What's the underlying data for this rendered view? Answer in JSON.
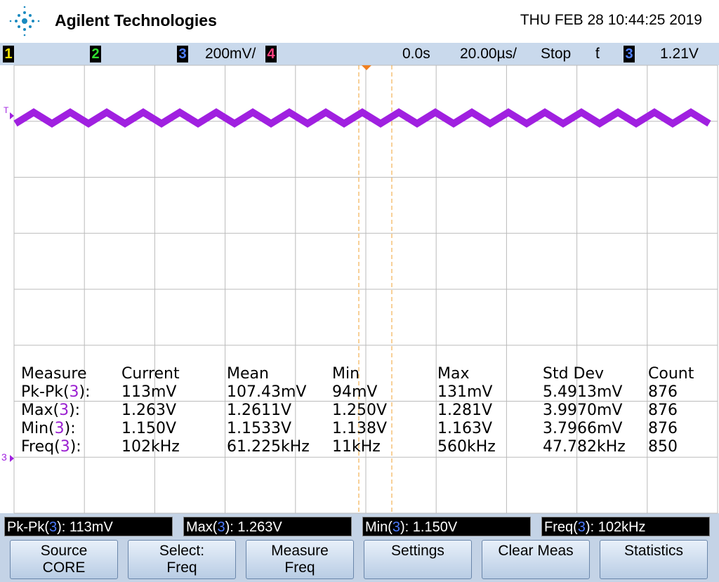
{
  "header": {
    "brand": "Agilent Technologies",
    "datetime": "THU FEB 28 10:44:25 2019"
  },
  "status_bar": {
    "ch1": "1",
    "ch2": "2",
    "ch3": "3",
    "ch3_scale": "200mV/",
    "ch4": "4",
    "time_offset": "0.0s",
    "time_scale": "20.00µs/",
    "run_state": "Stop",
    "trigger_slope": "ƭ",
    "trigger_channel": "3",
    "trigger_level": "1.21V"
  },
  "markers": {
    "trigger": "T",
    "ground": "3"
  },
  "measurements": {
    "headers": [
      "Measure",
      "Current",
      "Mean",
      "Min",
      "Max",
      "Std Dev",
      "Count"
    ],
    "rows": [
      {
        "prefix": "Pk-Pk(",
        "channel": "3",
        "suffix": "):",
        "cells": [
          "113mV",
          "107.43mV",
          "94mV",
          "131mV",
          "5.4913mV",
          "876"
        ]
      },
      {
        "prefix": "Max(",
        "channel": "3",
        "suffix": "):",
        "cells": [
          "1.263V",
          "1.2611V",
          "1.250V",
          "1.281V",
          "3.9970mV",
          "876"
        ]
      },
      {
        "prefix": "Min(",
        "channel": "3",
        "suffix": "):",
        "cells": [
          "1.150V",
          "1.1533V",
          "1.138V",
          "1.163V",
          "3.7966mV",
          "876"
        ]
      },
      {
        "prefix": "Freq(",
        "channel": "3",
        "suffix": "):",
        "cells": [
          "102kHz",
          "61.225kHz",
          "11kHz",
          "560kHz",
          "47.782kHz",
          "850"
        ]
      }
    ]
  },
  "readouts": [
    {
      "prefix": "Pk-Pk(",
      "channel": "3",
      "suffix": "): 113mV"
    },
    {
      "prefix": "Max(",
      "channel": "3",
      "suffix": "): 1.263V"
    },
    {
      "prefix": "Min(",
      "channel": "3",
      "suffix": "): 1.150V"
    },
    {
      "prefix": "Freq(",
      "channel": "3",
      "suffix": "): 102kHz"
    }
  ],
  "softkeys": [
    {
      "line1": "Source",
      "line2": "CORE"
    },
    {
      "line1": "Select:",
      "line2": "Freq"
    },
    {
      "line1": "Measure",
      "line2": "Freq"
    },
    {
      "line1": "Settings"
    },
    {
      "line1": "Clear Meas"
    },
    {
      "line1": "Statistics"
    }
  ]
}
